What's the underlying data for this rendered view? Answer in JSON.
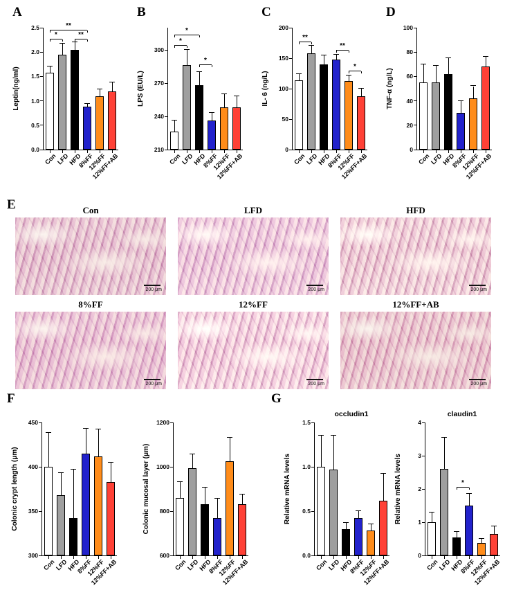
{
  "panels": {
    "a": "A",
    "b": "B",
    "c": "C",
    "d": "D",
    "e": "E",
    "f": "F",
    "g": "G"
  },
  "categories": [
    "Con",
    "LFD",
    "HFD",
    "8%FF",
    "12%FF",
    "12%FF+AB"
  ],
  "bar_colors": [
    "#ffffff",
    "#9f9f9f",
    "#000000",
    "#2222cc",
    "#ff8c1a",
    "#ff4136"
  ],
  "chart_data": [
    {
      "id": "leptin",
      "panel": "A",
      "type": "bar",
      "ylabel": "Leptin(ng/ml)",
      "ylim": [
        0,
        2.5
      ],
      "yticks": [
        0,
        0.5,
        1.0,
        1.5,
        2.0,
        2.5
      ],
      "ytick_labels": [
        "0.0",
        "0.5",
        "1.0",
        "1.5",
        "2.0",
        "2.5"
      ],
      "values": [
        1.58,
        1.95,
        2.05,
        0.88,
        1.1,
        1.2
      ],
      "errors": [
        0.12,
        0.22,
        0.15,
        0.06,
        0.13,
        0.18
      ],
      "sig": [
        {
          "from": 0,
          "to": 1,
          "label": "*",
          "y": 2.26
        },
        {
          "from": 0,
          "to": 3,
          "label": "**",
          "y": 2.44
        },
        {
          "from": 2,
          "to": 3,
          "label": "**",
          "y": 2.26
        }
      ]
    },
    {
      "id": "lps",
      "panel": "B",
      "type": "bar",
      "ylabel": "LPS (EU/L)",
      "ylim": [
        210,
        320
      ],
      "yticks": [
        210,
        240,
        270,
        300
      ],
      "ytick_labels": [
        "210",
        "240",
        "270",
        "300"
      ],
      "values": [
        226,
        286,
        268,
        236,
        248,
        248
      ],
      "errors": [
        10,
        14,
        12,
        7,
        12,
        10
      ],
      "sig": [
        {
          "from": 0,
          "to": 2,
          "label": "*",
          "y": 313
        },
        {
          "from": 0,
          "to": 1,
          "label": "*",
          "y": 304
        },
        {
          "from": 2,
          "to": 3,
          "label": "*",
          "y": 286
        }
      ]
    },
    {
      "id": "il6",
      "panel": "C",
      "type": "bar",
      "ylabel": "IL- 6 (ng/L)",
      "ylim": [
        0,
        200
      ],
      "yticks": [
        0,
        50,
        100,
        150,
        200
      ],
      "ytick_labels": [
        "0",
        "50",
        "100",
        "150",
        "200"
      ],
      "values": [
        114,
        158,
        140,
        148,
        112,
        88
      ],
      "errors": [
        10,
        13,
        15,
        8,
        10,
        12
      ],
      "sig": [
        {
          "from": 0,
          "to": 1,
          "label": "**",
          "y": 176
        },
        {
          "from": 3,
          "to": 4,
          "label": "**",
          "y": 163
        },
        {
          "from": 4,
          "to": 5,
          "label": "*",
          "y": 128
        }
      ]
    },
    {
      "id": "tnf",
      "panel": "D",
      "type": "bar",
      "ylabel": "TNF-α (ng/L)",
      "ylim": [
        0,
        100
      ],
      "yticks": [
        0,
        20,
        40,
        60,
        80,
        100
      ],
      "ytick_labels": [
        "0",
        "20",
        "40",
        "60",
        "80",
        "100"
      ],
      "values": [
        55,
        55,
        62,
        30,
        42,
        68
      ],
      "errors": [
        15,
        14,
        13,
        10,
        10,
        8
      ],
      "sig": []
    },
    {
      "id": "crypt",
      "panel": "F",
      "type": "bar",
      "ylabel": "Colonic crypt length (μm)",
      "ylim": [
        300,
        450
      ],
      "yticks": [
        300,
        350,
        400,
        450
      ],
      "ytick_labels": [
        "300",
        "350",
        "400",
        "450"
      ],
      "values": [
        400,
        368,
        342,
        415,
        412,
        383
      ],
      "errors": [
        38,
        25,
        55,
        28,
        30,
        22
      ],
      "sig": []
    },
    {
      "id": "mucosal",
      "panel": "F",
      "type": "bar",
      "ylabel": "Colonic mucosal layer (μm)",
      "ylim": [
        600,
        1200
      ],
      "yticks": [
        600,
        800,
        1000,
        1200
      ],
      "ytick_labels": [
        "600",
        "800",
        "1000",
        "1200"
      ],
      "values": [
        860,
        995,
        830,
        770,
        1025,
        830
      ],
      "errors": [
        70,
        60,
        75,
        85,
        105,
        45
      ],
      "sig": []
    },
    {
      "id": "occludin",
      "panel": "G",
      "type": "bar",
      "title": "occludin1",
      "ylabel": "Relative mRNA levels",
      "ylim": [
        0,
        1.5
      ],
      "yticks": [
        0,
        0.5,
        1.0,
        1.5
      ],
      "ytick_labels": [
        "0.0",
        "0.5",
        "1.0",
        "1.5"
      ],
      "values": [
        1.0,
        0.97,
        0.3,
        0.42,
        0.28,
        0.62
      ],
      "errors": [
        0.35,
        0.38,
        0.07,
        0.08,
        0.07,
        0.3
      ],
      "sig": []
    },
    {
      "id": "claudin",
      "panel": "G",
      "type": "bar",
      "title": "claudin1",
      "ylabel": "Relative mRNA levels",
      "ylim": [
        0,
        4
      ],
      "yticks": [
        0,
        1,
        2,
        3,
        4
      ],
      "ytick_labels": [
        "0",
        "1",
        "2",
        "3",
        "4"
      ],
      "values": [
        1.0,
        2.6,
        0.55,
        1.5,
        0.38,
        0.65
      ],
      "errors": [
        0.3,
        0.95,
        0.15,
        0.35,
        0.12,
        0.22
      ],
      "sig": [
        {
          "from": 2,
          "to": 3,
          "label": "*",
          "y": 2.05
        }
      ]
    }
  ],
  "histology": {
    "scale_label": "200 μm",
    "items": [
      {
        "label": "Con"
      },
      {
        "label": "LFD"
      },
      {
        "label": "HFD"
      },
      {
        "label": "8%FF"
      },
      {
        "label": "12%FF"
      },
      {
        "label": "12%FF+AB"
      }
    ]
  }
}
